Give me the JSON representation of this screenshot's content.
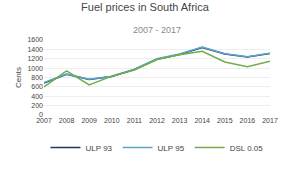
{
  "chart_data": {
    "type": "line",
    "title": "Fuel prices in South Africa",
    "subtitle": "2007 - 2017",
    "ylabel": "Cents",
    "x": [
      2007,
      2008,
      2009,
      2010,
      2011,
      2012,
      2013,
      2014,
      2015,
      2016,
      2017
    ],
    "series": [
      {
        "name": "ULP 93",
        "color": "#1F3864",
        "values": [
          680,
          870,
          760,
          820,
          970,
          1190,
          1290,
          1440,
          1300,
          1240,
          1310
        ]
      },
      {
        "name": "ULP 95",
        "color": "#5BA3C9",
        "values": [
          690,
          875,
          765,
          825,
          975,
          1200,
          1300,
          1450,
          1305,
          1245,
          1320
        ]
      },
      {
        "name": "DSL 0.05",
        "color": "#70AD47",
        "values": [
          600,
          940,
          640,
          830,
          960,
          1185,
          1285,
          1360,
          1130,
          1030,
          1145
        ]
      }
    ],
    "xlim": [
      2007,
      2017
    ],
    "xticks": [
      2007,
      2008,
      2009,
      2010,
      2011,
      2012,
      2013,
      2014,
      2015,
      2016,
      2017
    ],
    "ylim": [
      0,
      1600
    ],
    "yticks": [
      0,
      200,
      400,
      600,
      800,
      1000,
      1200,
      1400,
      1600
    ],
    "grid": "y",
    "legend": "bottom"
  }
}
